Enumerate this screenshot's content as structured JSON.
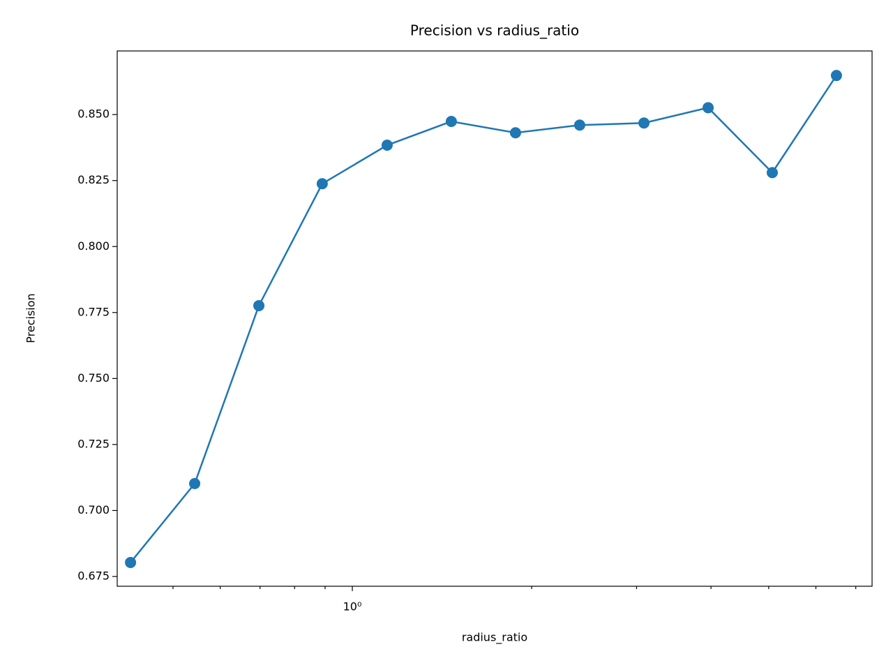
{
  "chart_data": {
    "type": "line",
    "title": "Precision vs radius_ratio",
    "xlabel": "radius_ratio",
    "ylabel": "Precision",
    "xscale": "log",
    "x": [
      0.4243,
      0.5437,
      0.6968,
      0.8902,
      1.144,
      1.466,
      1.879,
      2.408,
      3.087,
      3.956,
      5.069,
      6.496
    ],
    "series": [
      {
        "name": "Precision",
        "color": "#1f77b4",
        "marker": "o",
        "values": [
          0.6803,
          0.7102,
          0.7776,
          0.8238,
          0.8384,
          0.8474,
          0.8431,
          0.846,
          0.8468,
          0.8526,
          0.828,
          0.8648
        ]
      }
    ],
    "xlim": [
      0.403,
      7.455
    ],
    "xticks": [
      {
        "value": 1,
        "label": "10⁰"
      }
    ],
    "xminorticks": [
      0.5,
      0.6,
      0.7,
      0.8,
      0.9,
      2,
      3,
      4,
      5,
      6,
      7
    ],
    "ylim": [
      0.6713,
      0.8741
    ],
    "yticks": [
      {
        "value": 0.675,
        "label": "0.675"
      },
      {
        "value": 0.7,
        "label": "0.700"
      },
      {
        "value": 0.725,
        "label": "0.725"
      },
      {
        "value": 0.75,
        "label": "0.750"
      },
      {
        "value": 0.775,
        "label": "0.775"
      },
      {
        "value": 0.8,
        "label": "0.800"
      },
      {
        "value": 0.825,
        "label": "0.825"
      },
      {
        "value": 0.85,
        "label": "0.850"
      }
    ],
    "grid": false
  }
}
